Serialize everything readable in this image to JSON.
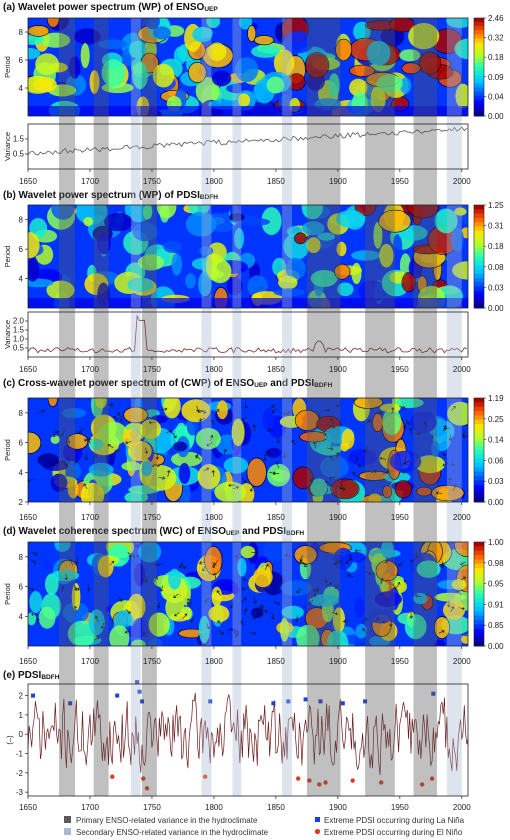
{
  "chart_data": [
    {
      "id": "a",
      "type": "heatmap",
      "title": "(a) Wavelet power spectrum (WP) of ENSO",
      "title_sub": "UEP",
      "ylabel": "Period",
      "yticks": [
        4,
        6,
        8
      ],
      "ylim": [
        2,
        9
      ],
      "colorbar_ticks": [
        "2.46",
        "0.32",
        "0.18",
        "0.09",
        "0.04",
        "0.00"
      ],
      "variance_panel": {
        "ylabel": "Variance",
        "yticks": [
          "0.5",
          "1.5"
        ],
        "line_color": "#555555"
      },
      "seed": 11,
      "hot_bias": 0.55
    },
    {
      "id": "b",
      "type": "heatmap",
      "title": "(b) Wavelet power spectrum (WP) of PDSI",
      "title_sub": "BDFH",
      "ylabel": "Period",
      "yticks": [
        4,
        6,
        8
      ],
      "ylim": [
        2,
        9
      ],
      "colorbar_ticks": [
        "1.25",
        "0.31",
        "0.18",
        "0.08",
        "0.03",
        "0.00"
      ],
      "variance_panel": {
        "ylabel": "Variance",
        "yticks": [
          "0.5",
          "1.0",
          "1.5",
          "2.0"
        ],
        "line_color": "#7a2a2a"
      },
      "seed": 23,
      "hot_bias": 0.35
    },
    {
      "id": "c",
      "type": "heatmap",
      "title": "(c) Cross-wavelet power spectrum of (CWP) of ENSO",
      "title_sub": "UEP",
      "title_mid": " and PDSI",
      "title_sub2": "BDFH",
      "ylabel": "Period",
      "yticks": [
        2,
        4,
        6,
        8
      ],
      "ylim": [
        2,
        9
      ],
      "colorbar_ticks": [
        "1.19",
        "0.25",
        "0.14",
        "0.06",
        "0.03",
        "0.00"
      ],
      "arrows": true,
      "seed": 37,
      "hot_bias": 0.4
    },
    {
      "id": "d",
      "type": "heatmap",
      "title": "(d) Wavelet coherence spectrum (WC) of ENSO",
      "title_sub": "UEP",
      "title_mid": " and PDSI",
      "title_sub2": "BDFH",
      "ylabel": "Period",
      "yticks": [
        4,
        6,
        8
      ],
      "ylim": [
        2,
        9
      ],
      "colorbar_ticks": [
        "1.00",
        "0.98",
        "0.95",
        "0.91",
        "0.85",
        "0.00"
      ],
      "arrows": true,
      "seed": 53,
      "hot_bias": 0.15
    },
    {
      "id": "e",
      "type": "line",
      "title": "(e) PDSI",
      "title_sub": "BDFH",
      "ylabel": "(–)",
      "yticks": [
        -3,
        -2,
        -1,
        0,
        1,
        2
      ],
      "ylim": [
        -3.2,
        2.6
      ],
      "line_color": "#6b1a1a",
      "la_nina_extremes": [
        {
          "x": 1654,
          "y": 2.0
        },
        {
          "x": 1684,
          "y": 1.6
        },
        {
          "x": 1722,
          "y": 2.0
        },
        {
          "x": 1738,
          "y": 2.7
        },
        {
          "x": 1740,
          "y": 2.2
        },
        {
          "x": 1742,
          "y": 1.7
        },
        {
          "x": 1797,
          "y": 1.7
        },
        {
          "x": 1848,
          "y": 1.6
        },
        {
          "x": 1860,
          "y": 1.7
        },
        {
          "x": 1874,
          "y": 1.8
        },
        {
          "x": 1886,
          "y": 1.7
        },
        {
          "x": 1904,
          "y": 1.6
        },
        {
          "x": 1922,
          "y": 1.7
        },
        {
          "x": 1977,
          "y": 2.1
        }
      ],
      "el_nino_extremes": [
        {
          "x": 1718,
          "y": -2.2
        },
        {
          "x": 1743,
          "y": -2.3
        },
        {
          "x": 1746,
          "y": -2.8
        },
        {
          "x": 1793,
          "y": -2.2
        },
        {
          "x": 1868,
          "y": -2.3
        },
        {
          "x": 1877,
          "y": -2.4
        },
        {
          "x": 1885,
          "y": -2.6
        },
        {
          "x": 1890,
          "y": -2.5
        },
        {
          "x": 1912,
          "y": -2.4
        },
        {
          "x": 1935,
          "y": -2.5
        },
        {
          "x": 1968,
          "y": -2.6
        },
        {
          "x": 1976,
          "y": -2.3
        }
      ],
      "seed": 71
    }
  ],
  "x_axis": {
    "xlim": [
      1650,
      2005
    ],
    "ticks": [
      1650,
      1700,
      1750,
      1800,
      1850,
      1900,
      1950,
      2000
    ]
  },
  "primary_bands": [
    [
      1675,
      1688
    ],
    [
      1703,
      1715
    ],
    [
      1742,
      1754
    ],
    [
      1875,
      1902
    ],
    [
      1922,
      1946
    ],
    [
      1961,
      1980
    ]
  ],
  "secondary_bands": [
    [
      1733,
      1741
    ],
    [
      1790,
      1798
    ],
    [
      1815,
      1822
    ],
    [
      1855,
      1863
    ],
    [
      1988,
      2000
    ]
  ],
  "legend": {
    "primary_label": "Primary ENSO-related variance in the hydroclimate",
    "secondary_label": "Secondary ENSO-related variance in the hydroclimate",
    "la_nina_label": "Extreme PDSI occurring during La Niña",
    "el_nino_label": "Extreme PDSI occurring during El Niño"
  },
  "colors": {
    "primary_band": "#5a5a5a",
    "secondary_band": "#a9b9cf",
    "la_nina_marker": "#1f3fd6",
    "el_nino_marker": "#e03a1e"
  }
}
